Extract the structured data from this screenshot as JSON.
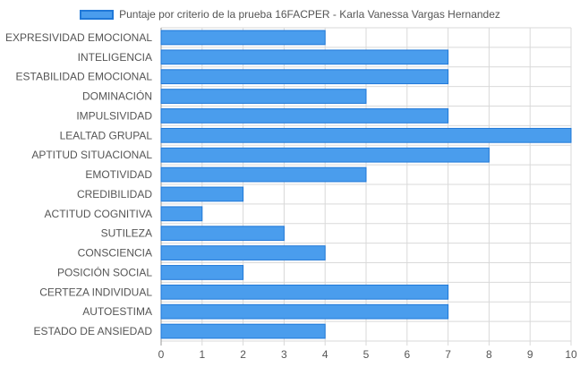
{
  "chart_data": {
    "type": "bar",
    "orientation": "horizontal",
    "categories": [
      "EXPRESIVIDAD EMOCIONAL",
      "INTELIGENCIA",
      "ESTABILIDAD EMOCIONAL",
      "DOMINACIÓN",
      "IMPULSIVIDAD",
      "LEALTAD GRUPAL",
      "APTITUD SITUACIONAL",
      "EMOTIVIDAD",
      "CREDIBILIDAD",
      "ACTITUD COGNITIVA",
      "SUTILEZA",
      "CONSCIENCIA",
      "POSICIÓN SOCIAL",
      "CERTEZA INDIVIDUAL",
      "AUTOESTIMA",
      "ESTADO DE ANSIEDAD"
    ],
    "series": [
      {
        "name": "Puntaje por criterio de la prueba 16FACPER - Karla Vanessa Vargas Hernandez",
        "values": [
          4,
          7,
          7,
          5,
          7,
          10,
          8,
          5,
          2,
          1,
          3,
          4,
          2,
          7,
          7,
          4
        ]
      }
    ],
    "xlim": [
      0,
      10
    ],
    "xticks": [
      "0",
      "1",
      "2",
      "3",
      "4",
      "5",
      "6",
      "7",
      "8",
      "9",
      "10"
    ],
    "grid": true,
    "legend_position": "top",
    "colors": {
      "bar_fill": "#4a9ded",
      "bar_border": "#1f78d8",
      "grid": "#d9d9d9",
      "label": "#555555"
    }
  }
}
